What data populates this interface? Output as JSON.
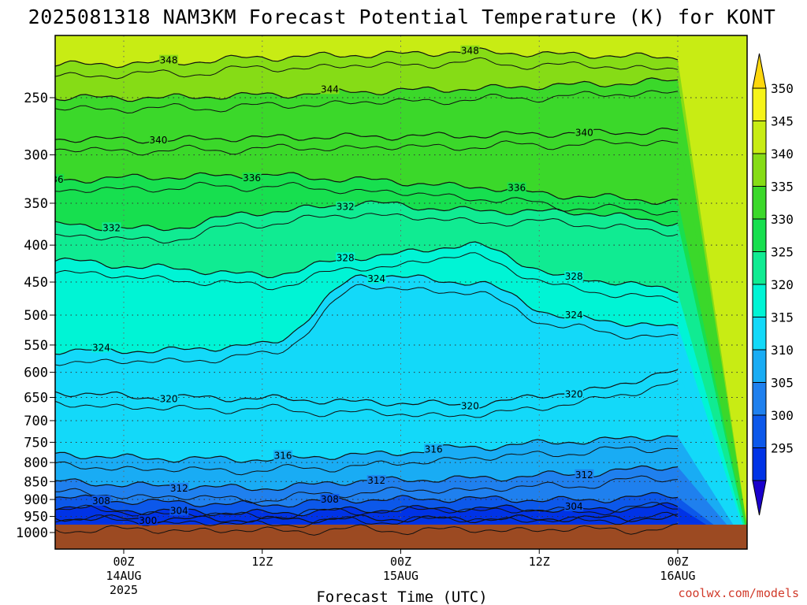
{
  "chart_data": {
    "type": "heatmap",
    "title": "2025081318 NAM3KM Forecast Potential Temperature (K) for KONT",
    "xlabel": "Forecast Time (UTC)",
    "ylabel": "",
    "y_scale": "log-pressure",
    "y_axis_units": "hPa",
    "ylim": [
      1000,
      200
    ],
    "y_ticks": [
      250,
      300,
      350,
      400,
      450,
      500,
      550,
      600,
      650,
      700,
      750,
      800,
      850,
      900,
      950,
      1000
    ],
    "x_axis_units": "forecast hours from 2025-08-13 18Z",
    "xlim": [
      0,
      54
    ],
    "x_ticks": [
      {
        "hour": 6,
        "label": [
          "00Z",
          "14AUG",
          "2025"
        ]
      },
      {
        "hour": 18,
        "label": [
          "12Z"
        ]
      },
      {
        "hour": 30,
        "label": [
          "00Z",
          "15AUG"
        ]
      },
      {
        "hour": 42,
        "label": [
          "12Z"
        ]
      },
      {
        "hour": 54,
        "label": [
          "00Z",
          "16AUG"
        ]
      }
    ],
    "grid": true,
    "colorbar": {
      "location": "right",
      "levels": [
        295,
        300,
        305,
        310,
        315,
        320,
        325,
        330,
        335,
        340,
        345,
        350
      ],
      "labels": [
        "350",
        "345",
        "340",
        "335",
        "330",
        "325",
        "320",
        "315",
        "310",
        "305",
        "300",
        "295"
      ],
      "colors": [
        "#1a00cc",
        "#0033e6",
        "#0c58ea",
        "#1f80ee",
        "#19acf4",
        "#13d9f9",
        "#00f4d5",
        "#10eb92",
        "#17df4f",
        "#3bd82a",
        "#86dc16",
        "#c8ec14",
        "#f6f419",
        "#fed70d"
      ]
    },
    "isentropes_pressure_hPa": {
      "hours": [
        0,
        9,
        18,
        27,
        36,
        45,
        54
      ],
      "levels": [
        {
          "theta": 300,
          "p": [
            955,
            958,
            960,
            957,
            958,
            956,
            955
          ]
        },
        {
          "theta": 304,
          "p": [
            920,
            935,
            940,
            930,
            925,
            930,
            920
          ]
        },
        {
          "theta": 308,
          "p": [
            895,
            908,
            915,
            900,
            898,
            902,
            888
          ]
        },
        {
          "theta": 312,
          "p": [
            850,
            862,
            868,
            848,
            842,
            830,
            810
          ]
        },
        {
          "theta": 316,
          "p": [
            780,
            790,
            792,
            780,
            762,
            748,
            735
          ]
        },
        {
          "theta": 320,
          "p": [
            640,
            650,
            652,
            660,
            665,
            640,
            600
          ]
        },
        {
          "theta": 324,
          "p": [
            560,
            560,
            550,
            440,
            450,
            505,
            520
          ]
        },
        {
          "theta": 328,
          "p": [
            420,
            430,
            440,
            415,
            400,
            445,
            460
          ]
        },
        {
          "theta": 332,
          "p": [
            375,
            380,
            360,
            350,
            358,
            360,
            372
          ]
        },
        {
          "theta": 336,
          "p": [
            325,
            322,
            320,
            325,
            332,
            342,
            348
          ]
        },
        {
          "theta": 340,
          "p": [
            285,
            286,
            284,
            283,
            282,
            280,
            278
          ]
        },
        {
          "theta": 344,
          "p": [
            250,
            250,
            248,
            245,
            243,
            240,
            237
          ]
        },
        {
          "theta": 348,
          "p": [
            225,
            224,
            220,
            218,
            216,
            218,
            220
          ]
        }
      ]
    },
    "contour_labels": [
      "348",
      "348",
      "344",
      "340",
      "340",
      "336",
      "336",
      "336",
      "332",
      "332",
      "328",
      "328",
      "324",
      "324",
      "324",
      "320",
      "320",
      "320",
      "316",
      "316",
      "312",
      "312",
      "312",
      "308",
      "308",
      "304",
      "304",
      "300"
    ],
    "terrain_color": "#9c4a22"
  },
  "credit": "coolwx.com/models"
}
